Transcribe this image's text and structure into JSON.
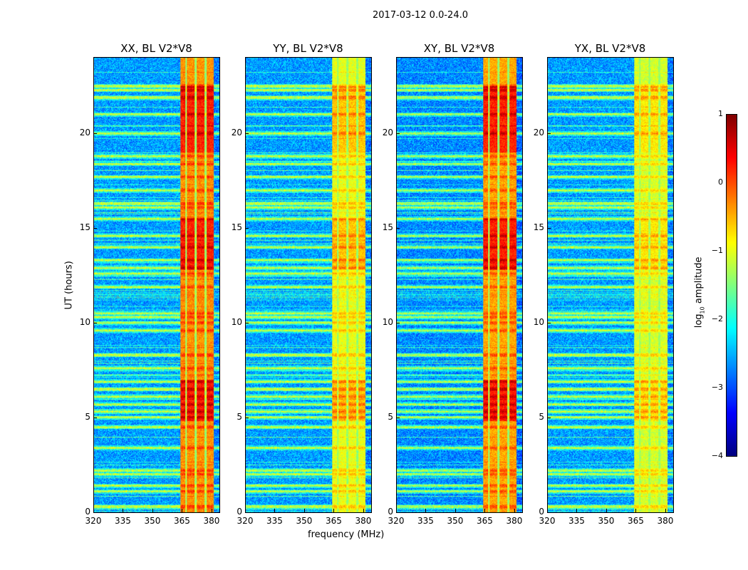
{
  "chart_data": {
    "type": "heatmap",
    "title": "2017-03-12 0.0-24.0",
    "xlabel": "frequency (MHz)",
    "ylabel": "UT (hours)",
    "xlim": [
      320,
      384
    ],
    "ylim": [
      0,
      24
    ],
    "xticks": [
      "320",
      "335",
      "350",
      "365",
      "380"
    ],
    "xtick_values": [
      320,
      335,
      350,
      365,
      380
    ],
    "yticks": [
      "0",
      "5",
      "10",
      "15",
      "20"
    ],
    "ytick_values": [
      0,
      5,
      10,
      15,
      20
    ],
    "colorbar": {
      "label": "log10 amplitude",
      "label_main": "log",
      "label_sub": "10",
      "label_rest": " amplitude",
      "range": [
        -4,
        1
      ],
      "ticks": [
        "1",
        "0",
        "−1",
        "−2",
        "−3",
        "−4"
      ],
      "tick_values": [
        1,
        0,
        -1,
        -2,
        -3,
        -4
      ],
      "colormap": "jet"
    },
    "band_MHz": [
      364,
      381
    ],
    "band_gaps_MHz": [
      367,
      372,
      377
    ],
    "rfi_times_hours": [
      0.3,
      1.1,
      1.4,
      2.0,
      2.2,
      3.4,
      4.5,
      5.0,
      5.3,
      5.7,
      6.1,
      6.5,
      6.9,
      7.6,
      8.3,
      9.6,
      10.0,
      10.3,
      10.5,
      11.9,
      12.6,
      12.9,
      13.3,
      14.0,
      14.6,
      15.5,
      16.1,
      16.3,
      17.0,
      17.7,
      18.4,
      18.8,
      20.0,
      21.0,
      21.9,
      22.3,
      22.5
    ],
    "panels": [
      {
        "title": "XX, BL V2*V8",
        "background_level": -2.6,
        "band_level": -0.35,
        "band_busy_level": 0.2
      },
      {
        "title": "YY, BL V2*V8",
        "background_level": -2.6,
        "band_level": -1.0,
        "band_busy_level": -0.6
      },
      {
        "title": "XY, BL V2*V8",
        "background_level": -2.7,
        "band_level": -0.45,
        "band_busy_level": 0.2
      },
      {
        "title": "YX, BL V2*V8",
        "background_level": -2.6,
        "band_level": -1.1,
        "band_busy_level": -0.8
      }
    ]
  }
}
